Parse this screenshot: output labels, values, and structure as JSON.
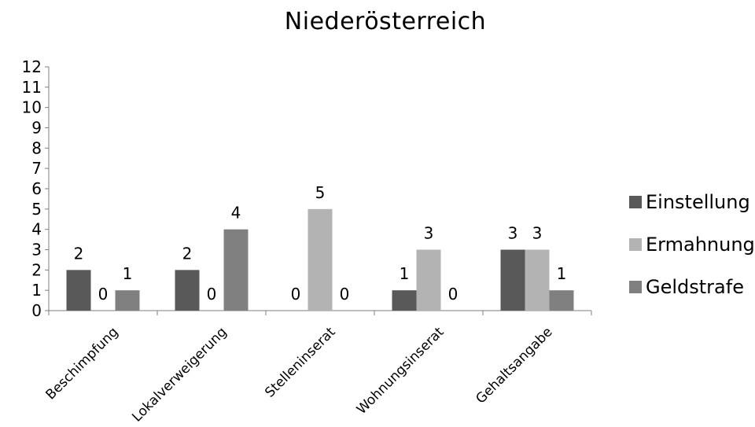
{
  "chart_data": {
    "type": "bar",
    "title": "Niederösterreich",
    "categories": [
      "Beschimpfung",
      "Lokalverweigerung",
      "Stelleninserat",
      "Wohnungsinserat",
      "Gehaltsangabe"
    ],
    "series": [
      {
        "name": "Einstellung",
        "values": [
          2,
          2,
          0,
          1,
          3
        ],
        "color": "#595959"
      },
      {
        "name": "Ermahnung",
        "values": [
          0,
          0,
          5,
          3,
          3
        ],
        "color": "#b3b3b3"
      },
      {
        "name": "Geldstrafe",
        "values": [
          1,
          4,
          0,
          0,
          1
        ],
        "color": "#808080"
      }
    ],
    "ylim": [
      0,
      12
    ],
    "yticks": [
      0,
      1,
      2,
      3,
      4,
      5,
      6,
      7,
      8,
      9,
      10,
      11,
      12
    ],
    "grid": false,
    "data_labels": true,
    "legend_position": "right"
  }
}
